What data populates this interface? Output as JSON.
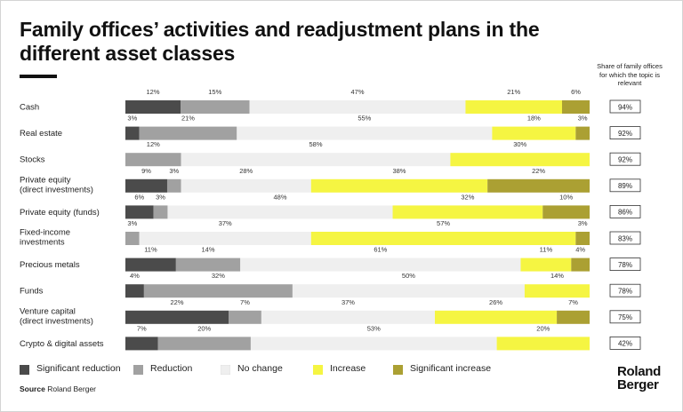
{
  "title": "Family offices’ activities and readjustment plans in the different asset classes",
  "share_header": "Share of family offices for which the topic is relevant",
  "source": {
    "label": "Source",
    "text": "Roland Berger"
  },
  "logo": {
    "line1": "Roland",
    "line2": "Berger"
  },
  "colors": {
    "significant_reduction": "#4b4b4b",
    "reduction": "#a1a1a1",
    "no_change": "#efefef",
    "increase": "#f5f542",
    "significant_increase": "#aba033"
  },
  "chart_data": {
    "type": "bar",
    "orientation": "horizontal",
    "stacked": true,
    "value_unit": "%",
    "categories": [
      [
        "Cash"
      ],
      [
        "Real estate"
      ],
      [
        "Stocks"
      ],
      [
        "Private equity",
        "(direct investments)"
      ],
      [
        "Private equity (funds)"
      ],
      [
        "Fixed-income",
        "investments"
      ],
      [
        "Precious metals"
      ],
      [
        "Funds"
      ],
      [
        "Venture capital",
        "(direct investments)"
      ],
      [
        "Crypto & digital assets"
      ]
    ],
    "series": [
      {
        "name": "Significant reduction",
        "color": "#4b4b4b",
        "values": [
          12,
          3,
          0,
          9,
          6,
          0,
          11,
          4,
          22,
          7
        ]
      },
      {
        "name": "Reduction",
        "color": "#a1a1a1",
        "values": [
          15,
          21,
          12,
          3,
          3,
          3,
          14,
          32,
          7,
          20
        ]
      },
      {
        "name": "No change",
        "color": "#efefef",
        "values": [
          47,
          55,
          58,
          28,
          48,
          37,
          61,
          50,
          37,
          53
        ]
      },
      {
        "name": "Increase",
        "color": "#f5f542",
        "values": [
          21,
          18,
          30,
          38,
          32,
          57,
          11,
          14,
          26,
          20
        ]
      },
      {
        "name": "Significant increase",
        "color": "#aba033",
        "values": [
          6,
          3,
          0,
          22,
          10,
          3,
          4,
          0,
          7,
          0
        ]
      }
    ],
    "relevance_share": [
      "94%",
      "92%",
      "92%",
      "89%",
      "86%",
      "83%",
      "78%",
      "78%",
      "75%",
      "42%"
    ],
    "legend_position": "bottom"
  }
}
